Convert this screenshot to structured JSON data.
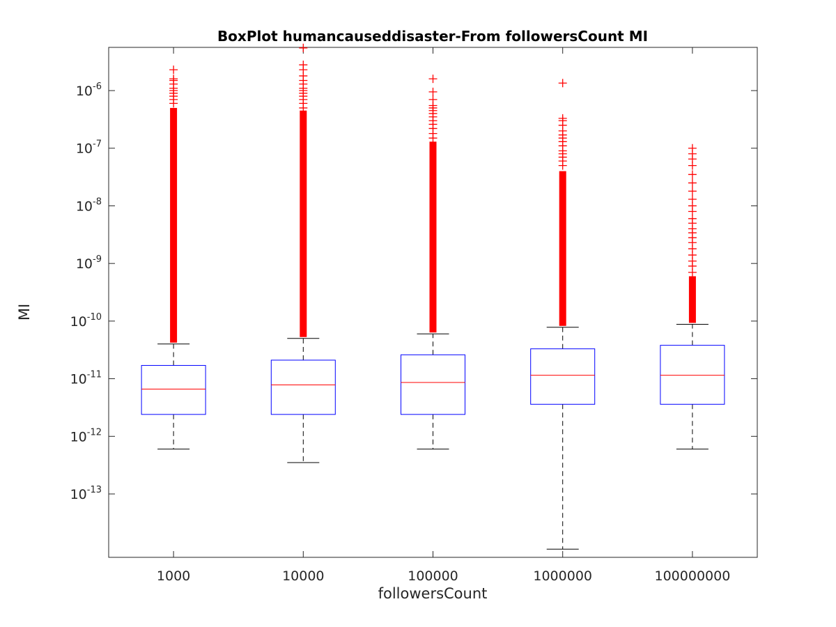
{
  "chart_data": {
    "type": "boxplot",
    "title": "BoxPlot humancauseddisaster-From followersCount MI",
    "xlabel": "followersCount",
    "ylabel": "MI",
    "y_scale": "log",
    "ylim_exponent": [
      -14.1,
      -5.25
    ],
    "y_tick_exponents": [
      -13,
      -12,
      -11,
      -10,
      -9,
      -8,
      -7,
      -6
    ],
    "y_tick_base": "10",
    "grid": false,
    "colors": {
      "box": "#0000ff",
      "median": "#ff0000",
      "whisker": "#000000",
      "outlier": "#ff0000",
      "axis": "#262626"
    },
    "categories": [
      "1000",
      "10000",
      "100000",
      "1000000",
      "100000000"
    ],
    "boxes": [
      {
        "category": "1000",
        "lower_whisker": 6e-13,
        "q1": 2.4e-12,
        "median": 6.6e-12,
        "q3": 1.7e-11,
        "upper_whisker": 4e-11,
        "outliers_dense_to": 5e-07,
        "outliers": [
          6e-07,
          7e-07,
          8e-07,
          9e-07,
          1e-06,
          1.1e-06,
          1.3e-06,
          1.5e-06,
          1.6e-06,
          2.3e-06
        ]
      },
      {
        "category": "10000",
        "lower_whisker": 3.5e-13,
        "q1": 2.4e-12,
        "median": 7.8e-12,
        "q3": 2.1e-11,
        "upper_whisker": 5e-11,
        "outliers_dense_to": 4.5e-07,
        "outliers": [
          5e-07,
          6e-07,
          7e-07,
          8e-07,
          9e-07,
          1e-06,
          1.1e-06,
          1.3e-06,
          1.5e-06,
          1.8e-06,
          2.3e-06,
          2.8e-06,
          5.5e-06
        ]
      },
      {
        "category": "100000",
        "lower_whisker": 6e-13,
        "q1": 2.4e-12,
        "median": 8.6e-12,
        "q3": 2.6e-11,
        "upper_whisker": 6e-11,
        "outliers_dense_to": 1.3e-07,
        "outliers": [
          1.5e-07,
          1.8e-07,
          2.2e-07,
          2.6e-07,
          3e-07,
          3.5e-07,
          4e-07,
          4.5e-07,
          5e-07,
          5.5e-07,
          7e-07,
          9.5e-07,
          1.6e-06
        ]
      },
      {
        "category": "1000000",
        "lower_whisker": 1.1e-14,
        "q1": 3.6e-12,
        "median": 1.15e-11,
        "q3": 3.3e-11,
        "upper_whisker": 7.8e-11,
        "outliers_dense_to": 4e-08,
        "outliers": [
          5e-08,
          6e-08,
          7e-08,
          8e-08,
          9e-08,
          1.1e-07,
          1.3e-07,
          1.5e-07,
          1.7e-07,
          2e-07,
          2.5e-07,
          3e-07,
          3.3e-07,
          1.35e-06
        ]
      },
      {
        "category": "100000000",
        "lower_whisker": 6e-13,
        "q1": 3.6e-12,
        "median": 1.15e-11,
        "q3": 3.8e-11,
        "upper_whisker": 8.8e-11,
        "outliers_dense_to": 6e-10,
        "outliers": [
          7e-10,
          9e-10,
          1.1e-09,
          1.4e-09,
          1.8e-09,
          2.3e-09,
          2.8e-09,
          3.4e-09,
          4e-09,
          5e-09,
          6e-09,
          8e-09,
          1e-08,
          1.3e-08,
          1.8e-08,
          2.5e-08,
          3.5e-08,
          5e-08,
          6.5e-08,
          8e-08,
          1e-07
        ]
      }
    ]
  }
}
